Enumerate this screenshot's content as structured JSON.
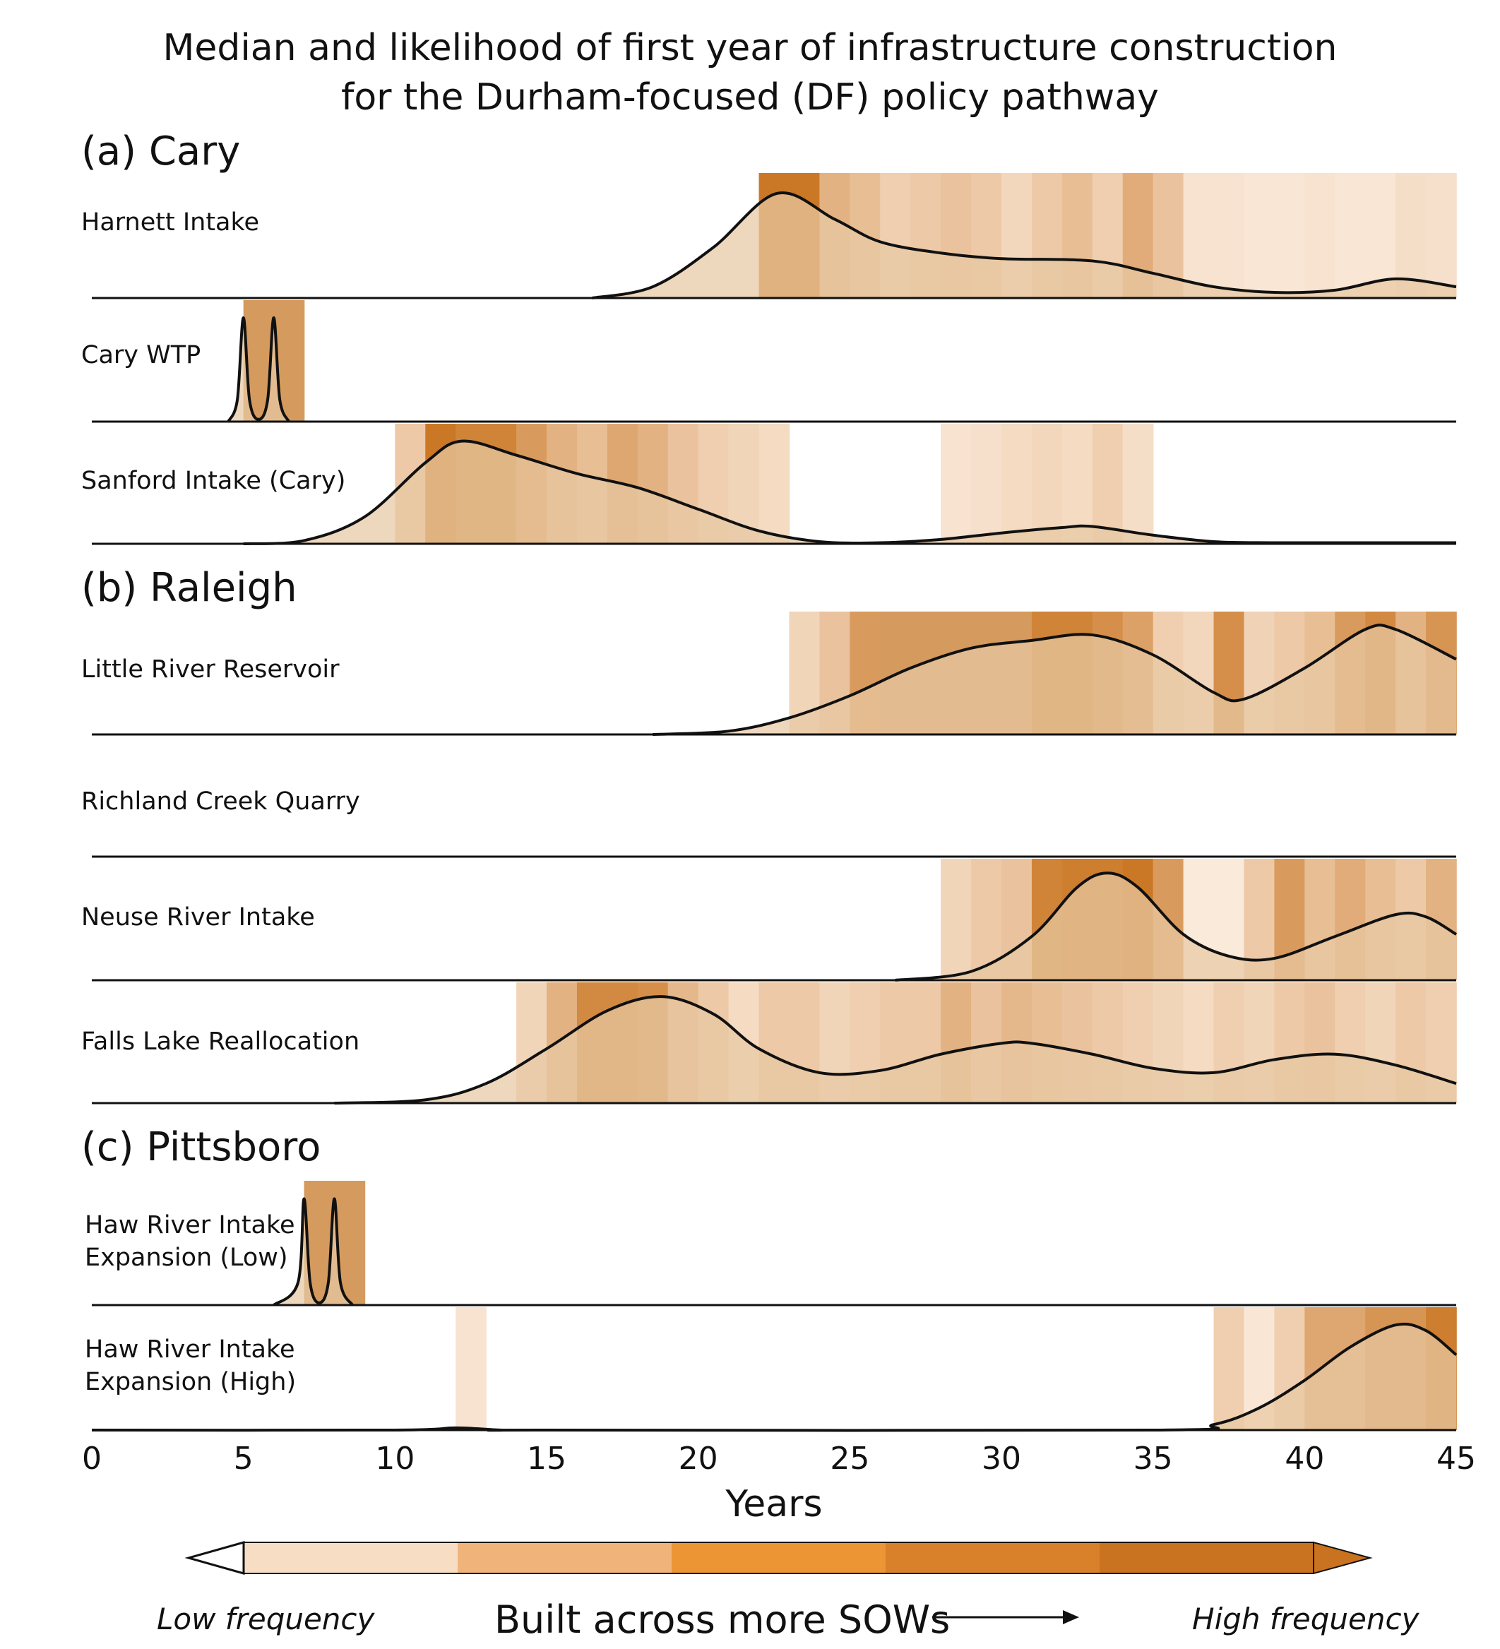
{
  "figure": {
    "title_line1": "Median and likelihood of first year of infrastructure construction",
    "title_line2": "for the Durham-focused (DF) policy pathway",
    "xlabel": "Years",
    "colorbar": {
      "colors": [
        "#f7ddc4",
        "#f0b47a",
        "#eb9535",
        "#d9812a",
        "#c9721f"
      ],
      "left_label": "Low frequency",
      "center_label": "Built across more SOWs",
      "right_label": "High frequency",
      "end_color": "#c9721f"
    }
  },
  "chart_data": {
    "type": "area",
    "xlim": [
      0,
      45
    ],
    "xticks": [
      "0",
      "5",
      "10",
      "15",
      "20",
      "25",
      "30",
      "35",
      "40",
      "45"
    ],
    "fill_color": "#e8c9a3",
    "line_color": "#111111",
    "sections": [
      {
        "label": "(a) Cary",
        "rows": [
          {
            "name": "Harnett Intake",
            "density": {
              "x": [
                16.5,
                18.5,
                20.5,
                22.6,
                24.5,
                26,
                28,
                30,
                33,
                35,
                37,
                39,
                41,
                43,
                45
              ],
              "y": [
                0,
                0.1,
                0.45,
                0.93,
                0.7,
                0.5,
                0.4,
                0.35,
                0.33,
                0.22,
                0.1,
                0.05,
                0.07,
                0.17,
                0.1
              ]
            },
            "frequency_bands": [
              [
                22,
                1
              ],
              [
                23,
                1
              ],
              [
                24,
                0.5
              ],
              [
                25,
                0.4
              ],
              [
                26,
                0.25
              ],
              [
                27,
                0.3
              ],
              [
                28,
                0.35
              ],
              [
                29,
                0.3
              ],
              [
                30,
                0.18
              ],
              [
                31,
                0.3
              ],
              [
                32,
                0.4
              ],
              [
                33,
                0.25
              ],
              [
                34,
                0.55
              ],
              [
                35,
                0.35
              ],
              [
                36,
                0.08
              ],
              [
                37,
                0.08
              ],
              [
                38,
                0.05
              ],
              [
                39,
                0.05
              ],
              [
                40,
                0.08
              ],
              [
                41,
                0.05
              ],
              [
                42,
                0.05
              ],
              [
                43,
                0.12
              ],
              [
                44,
                0.1
              ]
            ]
          },
          {
            "name": "Cary WTP",
            "density": {
              "x": [
                4.5,
                4.8,
                5,
                5.2,
                5.5,
                5.8,
                6,
                6.2,
                6.5
              ],
              "y": [
                0,
                0.2,
                0.95,
                0.2,
                0.02,
                0.2,
                0.95,
                0.2,
                0
              ]
            },
            "frequency_bands": [
              [
                5,
                1.6
              ],
              [
                6,
                1.6
              ]
            ]
          },
          {
            "name": "Sanford Intake (Cary)",
            "density": {
              "x": [
                5,
                7,
                9,
                11,
                12.2,
                14,
                16,
                18,
                20,
                22,
                24,
                26,
                28,
                30,
                32,
                33,
                35,
                37,
                39,
                42,
                45
              ],
              "y": [
                0,
                0.03,
                0.25,
                0.75,
                0.95,
                0.82,
                0.65,
                0.52,
                0.32,
                0.12,
                0.02,
                0.01,
                0.04,
                0.1,
                0.15,
                0.16,
                0.08,
                0.02,
                0.01,
                0.01,
                0.01
              ]
            },
            "frequency_bands": [
              [
                10,
                0.3
              ],
              [
                11,
                1.0
              ],
              [
                12,
                0.9
              ],
              [
                13,
                0.9
              ],
              [
                14,
                0.7
              ],
              [
                15,
                0.5
              ],
              [
                16,
                0.4
              ],
              [
                17,
                0.6
              ],
              [
                18,
                0.5
              ],
              [
                19,
                0.35
              ],
              [
                20,
                0.25
              ],
              [
                21,
                0.2
              ],
              [
                22,
                0.15
              ],
              [
                28,
                0.08
              ],
              [
                29,
                0.1
              ],
              [
                30,
                0.15
              ],
              [
                31,
                0.18
              ],
              [
                32,
                0.15
              ],
              [
                33,
                0.25
              ],
              [
                34,
                0.12
              ]
            ]
          }
        ]
      },
      {
        "label": "(b) Raleigh",
        "rows": [
          {
            "name": "Little River Reservoir",
            "density": {
              "x": [
                18.5,
                21,
                23,
                25,
                27,
                29,
                31,
                33,
                35,
                37,
                38,
                40,
                42,
                43,
                45
              ],
              "y": [
                0,
                0.03,
                0.15,
                0.35,
                0.6,
                0.78,
                0.85,
                0.9,
                0.72,
                0.38,
                0.32,
                0.6,
                0.95,
                0.95,
                0.68
              ]
            },
            "frequency_bands": [
              [
                23,
                0.2
              ],
              [
                24,
                0.35
              ],
              [
                25,
                0.7
              ],
              [
                26,
                1.2
              ],
              [
                27,
                1.2
              ],
              [
                28,
                1.25
              ],
              [
                29,
                1.1
              ],
              [
                30,
                1.1
              ],
              [
                31,
                0.9
              ],
              [
                32,
                0.9
              ],
              [
                33,
                0.8
              ],
              [
                34,
                0.65
              ],
              [
                35,
                0.25
              ],
              [
                36,
                0.18
              ],
              [
                37,
                0.8
              ],
              [
                38,
                0.22
              ],
              [
                39,
                0.3
              ],
              [
                40,
                0.4
              ],
              [
                41,
                0.7
              ],
              [
                42,
                0.85
              ],
              [
                43,
                0.5
              ],
              [
                44,
                0.75
              ]
            ]
          },
          {
            "name": "Richland Creek Quarry",
            "density": {
              "x": [],
              "y": []
            },
            "frequency_bands": []
          },
          {
            "name": "Neuse River Intake",
            "density": {
              "x": [
                26.5,
                29,
                31,
                32.5,
                33.5,
                34.5,
                36,
                37.5,
                39,
                41,
                43,
                44,
                45
              ],
              "y": [
                0,
                0.08,
                0.4,
                0.85,
                0.98,
                0.85,
                0.42,
                0.22,
                0.2,
                0.4,
                0.6,
                0.58,
                0.42
              ]
            },
            "frequency_bands": [
              [
                28,
                0.2
              ],
              [
                29,
                0.3
              ],
              [
                30,
                0.35
              ],
              [
                31,
                0.9
              ],
              [
                32,
                0.95
              ],
              [
                33,
                0.95
              ],
              [
                34,
                1.0
              ],
              [
                35,
                0.7
              ],
              [
                36,
                0.02
              ],
              [
                37,
                0.02
              ],
              [
                38,
                0.3
              ],
              [
                39,
                0.7
              ],
              [
                40,
                0.4
              ],
              [
                41,
                0.55
              ],
              [
                42,
                0.4
              ],
              [
                43,
                0.3
              ],
              [
                44,
                0.5
              ]
            ]
          },
          {
            "name": "Falls Lake Reallocation",
            "density": {
              "x": [
                8,
                11,
                13,
                15,
                17,
                18.8,
                20.5,
                22,
                24,
                26,
                28,
                30,
                31,
                33,
                35,
                37,
                39,
                41,
                43,
                45
              ],
              "y": [
                0,
                0.03,
                0.18,
                0.5,
                0.85,
                0.98,
                0.82,
                0.5,
                0.28,
                0.3,
                0.45,
                0.55,
                0.55,
                0.45,
                0.32,
                0.28,
                0.4,
                0.45,
                0.35,
                0.18
              ]
            },
            "frequency_bands": [
              [
                14,
                0.2
              ],
              [
                15,
                0.5
              ],
              [
                16,
                0.85
              ],
              [
                17,
                0.85
              ],
              [
                18,
                0.8
              ],
              [
                19,
                0.45
              ],
              [
                20,
                0.3
              ],
              [
                21,
                0.15
              ],
              [
                22,
                0.3
              ],
              [
                23,
                0.3
              ],
              [
                24,
                0.2
              ],
              [
                25,
                0.25
              ],
              [
                26,
                0.3
              ],
              [
                27,
                0.3
              ],
              [
                28,
                0.5
              ],
              [
                29,
                0.35
              ],
              [
                30,
                0.45
              ],
              [
                31,
                0.4
              ],
              [
                32,
                0.35
              ],
              [
                33,
                0.3
              ],
              [
                34,
                0.25
              ],
              [
                35,
                0.2
              ],
              [
                36,
                0.15
              ],
              [
                37,
                0.25
              ],
              [
                38,
                0.2
              ],
              [
                39,
                0.3
              ],
              [
                40,
                0.35
              ],
              [
                41,
                0.25
              ],
              [
                42,
                0.2
              ],
              [
                43,
                0.3
              ],
              [
                44,
                0.25
              ]
            ]
          }
        ]
      },
      {
        "label": "(c) Pittsboro",
        "rows": [
          {
            "name": "Haw River Intake\nExpansion (Low)",
            "density": {
              "x": [
                6.0,
                6.8,
                7.0,
                7.2,
                7.5,
                7.8,
                8.0,
                8.2,
                8.6
              ],
              "y": [
                0,
                0.2,
                0.95,
                0.2,
                0.02,
                0.2,
                0.95,
                0.2,
                0
              ]
            },
            "frequency_bands": [
              [
                7,
                1.6
              ],
              [
                8,
                1.6
              ]
            ]
          },
          {
            "name": "Haw River Intake\nExpansion (High)",
            "density": {
              "x": [
                0,
                10,
                12,
                13.5,
                15,
                35,
                37,
                38.5,
                40,
                41.5,
                43,
                44,
                45
              ],
              "y": [
                0,
                0,
                0.02,
                0,
                0,
                0,
                0.05,
                0.2,
                0.45,
                0.75,
                0.95,
                0.9,
                0.68
              ]
            },
            "frequency_bands": [
              [
                12,
                0.08
              ],
              [
                37,
                0.25
              ],
              [
                38,
                0.05
              ],
              [
                39,
                0.25
              ],
              [
                40,
                0.6
              ],
              [
                41,
                0.6
              ],
              [
                42,
                0.75
              ],
              [
                43,
                0.75
              ],
              [
                44,
                0.95
              ]
            ]
          }
        ]
      }
    ]
  }
}
